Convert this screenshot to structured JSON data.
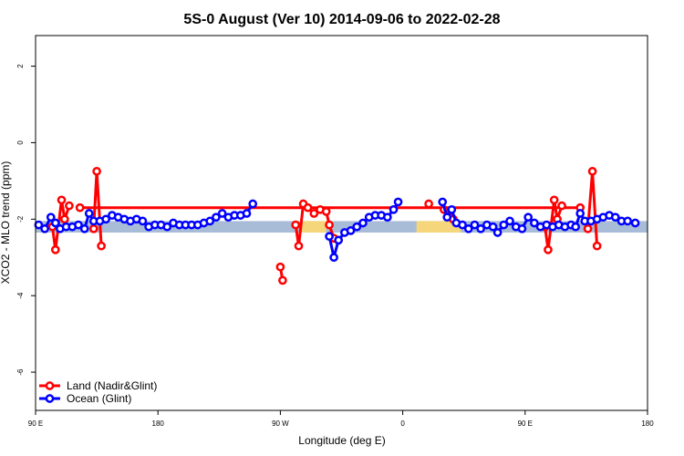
{
  "chart_data": {
    "type": "line",
    "title": "5S-0 August (Ver 10)   2014-09-06 to 2022-02-28",
    "xlabel": "Longitude (deg E)",
    "ylabel": "XCO2 - MLO trend (ppm)",
    "xlim": [
      90,
      490
    ],
    "ylim": [
      -7,
      2.8
    ],
    "x_ticks": [
      {
        "value": 90,
        "label": "90 E"
      },
      {
        "value": 170,
        "label": "180"
      },
      {
        "value": 250,
        "label": "90 W"
      },
      {
        "value": 330,
        "label": "0"
      },
      {
        "value": 410,
        "label": "90 E"
      },
      {
        "value": 490,
        "label": "180"
      }
    ],
    "y_ticks": [
      {
        "value": 2,
        "label": "2"
      },
      {
        "value": 0,
        "label": "0"
      },
      {
        "value": -2,
        "label": "-2"
      },
      {
        "value": -4,
        "label": "-4"
      },
      {
        "value": -6,
        "label": "-6"
      }
    ],
    "band": {
      "y_low": -2.35,
      "y_high": -2.05,
      "color": "#a8bcd8",
      "highlight_color": "#f5d67a",
      "highlights": [
        [
          264,
          280
        ],
        [
          339,
          368
        ]
      ]
    },
    "legend_position": "bottom-left",
    "series": [
      {
        "name": "Land (Nadir&Glint)",
        "color": "#ff0000",
        "segments": [
          [
            [
              101,
              -2.2
            ],
            [
              103,
              -2.8
            ],
            [
              107,
              -1.5
            ],
            [
              109,
              -2.0
            ],
            [
              112,
              -1.65
            ]
          ],
          [
            [
              128,
              -2.25
            ],
            [
              130,
              -0.75
            ],
            [
              133,
              -2.7
            ]
          ],
          [
            [
              250,
              -3.25
            ],
            [
              251.5,
              -3.6
            ]
          ],
          [
            [
              260,
              -2.15
            ],
            [
              262,
              -2.7
            ],
            [
              265,
              -1.6
            ],
            [
              268,
              -1.7
            ],
            [
              272,
              -1.85
            ],
            [
              276,
              -1.75
            ],
            [
              280,
              -1.8
            ],
            [
              282,
              -2.15
            ],
            [
              285,
              -2.5
            ],
            [
              288,
              -2.55
            ]
          ],
          [
            [
              347,
              -1.6
            ]
          ],
          [
            [
              357,
              -1.75
            ],
            [
              360,
              -1.9
            ],
            [
              363,
              -2.0
            ]
          ],
          [
            [
              423,
              -2.2
            ],
            [
              425,
              -2.8
            ],
            [
              429,
              -1.5
            ],
            [
              431,
              -2.0
            ],
            [
              434,
              -1.65
            ]
          ],
          [
            [
              451,
              -2.25
            ],
            [
              454,
              -0.75
            ],
            [
              457,
              -2.7
            ]
          ],
          [
            [
              119,
              -1.7
            ],
            [
              446,
              -1.7
            ]
          ]
        ]
      },
      {
        "name": "Ocean (Glint)",
        "color": "#0000ff",
        "segments": [
          [
            [
              92,
              -2.15
            ],
            [
              96,
              -2.25
            ],
            [
              100,
              -1.95
            ],
            [
              103,
              -2.1
            ],
            [
              106,
              -2.25
            ],
            [
              110,
              -2.2
            ],
            [
              114,
              -2.2
            ],
            [
              118,
              -2.15
            ],
            [
              122,
              -2.25
            ],
            [
              125,
              -1.85
            ],
            [
              128,
              -2.05
            ],
            [
              132,
              -2.05
            ],
            [
              136,
              -2.0
            ],
            [
              140,
              -1.9
            ],
            [
              144,
              -1.95
            ],
            [
              148,
              -2.0
            ],
            [
              152,
              -2.05
            ],
            [
              156,
              -2.0
            ],
            [
              160,
              -2.05
            ],
            [
              164,
              -2.2
            ],
            [
              168,
              -2.15
            ],
            [
              172,
              -2.15
            ],
            [
              176,
              -2.2
            ],
            [
              180,
              -2.1
            ],
            [
              184,
              -2.15
            ],
            [
              188,
              -2.15
            ],
            [
              192,
              -2.15
            ],
            [
              196,
              -2.15
            ],
            [
              200,
              -2.1
            ],
            [
              204,
              -2.05
            ],
            [
              208,
              -1.95
            ],
            [
              212,
              -1.85
            ],
            [
              216,
              -1.95
            ],
            [
              220,
              -1.9
            ],
            [
              224,
              -1.9
            ],
            [
              228,
              -1.85
            ],
            [
              232,
              -1.6
            ]
          ],
          [
            [
              282,
              -2.45
            ],
            [
              285,
              -3.0
            ],
            [
              288,
              -2.55
            ],
            [
              292,
              -2.35
            ],
            [
              296,
              -2.3
            ],
            [
              300,
              -2.2
            ],
            [
              304,
              -2.1
            ],
            [
              308,
              -1.95
            ],
            [
              312,
              -1.9
            ],
            [
              316,
              -1.9
            ],
            [
              320,
              -1.95
            ],
            [
              324,
              -1.75
            ],
            [
              327,
              -1.55
            ]
          ],
          [
            [
              356,
              -1.55
            ],
            [
              359,
              -1.95
            ],
            [
              362,
              -1.75
            ],
            [
              365,
              -2.1
            ],
            [
              369,
              -2.15
            ],
            [
              373,
              -2.25
            ],
            [
              377,
              -2.15
            ],
            [
              381,
              -2.25
            ],
            [
              385,
              -2.15
            ],
            [
              389,
              -2.2
            ],
            [
              392,
              -2.35
            ],
            [
              396,
              -2.15
            ],
            [
              400,
              -2.05
            ],
            [
              404,
              -2.2
            ],
            [
              408,
              -2.25
            ],
            [
              412,
              -1.95
            ],
            [
              416,
              -2.1
            ],
            [
              420,
              -2.2
            ],
            [
              424,
              -2.15
            ],
            [
              428,
              -2.2
            ],
            [
              432,
              -2.15
            ],
            [
              436,
              -2.2
            ],
            [
              440,
              -2.15
            ],
            [
              443,
              -2.2
            ],
            [
              446,
              -1.85
            ],
            [
              449,
              -2.05
            ],
            [
              453,
              -2.05
            ],
            [
              457,
              -2.0
            ],
            [
              461,
              -1.95
            ],
            [
              465,
              -1.9
            ],
            [
              469,
              -1.95
            ],
            [
              473,
              -2.05
            ],
            [
              477,
              -2.05
            ],
            [
              482,
              -2.1
            ]
          ]
        ]
      }
    ]
  }
}
